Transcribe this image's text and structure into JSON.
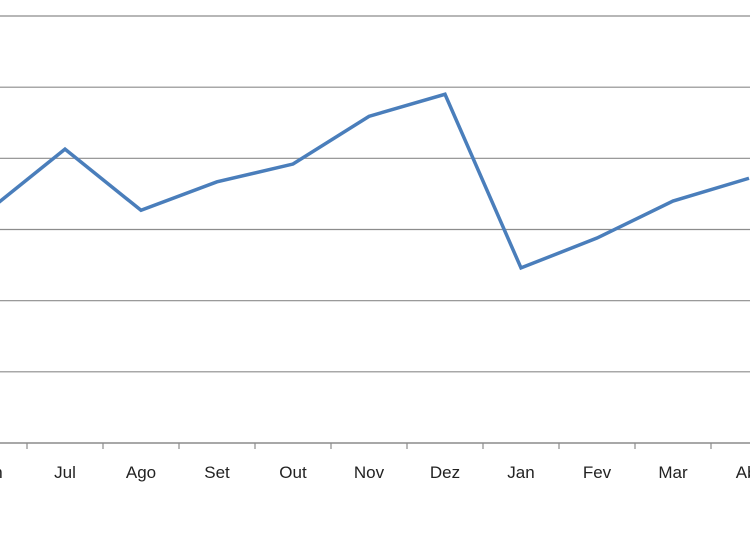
{
  "chart_data": {
    "type": "line",
    "categories": [
      "Jun",
      "Jul",
      "Ago",
      "Set",
      "Out",
      "Nov",
      "Dez",
      "Jan",
      "Fev",
      "Mar",
      "Abr"
    ],
    "series": [
      {
        "values": [
          3.27,
          4.13,
          3.27,
          3.67,
          3.92,
          4.59,
          4.9,
          2.46,
          2.88,
          3.4,
          3.72
        ]
      }
    ],
    "ylim": [
      0,
      6
    ],
    "grid": true,
    "line_color": "#4a7ebb",
    "grid_color": "#8c8c8c",
    "xlabel": "",
    "ylabel": ""
  }
}
